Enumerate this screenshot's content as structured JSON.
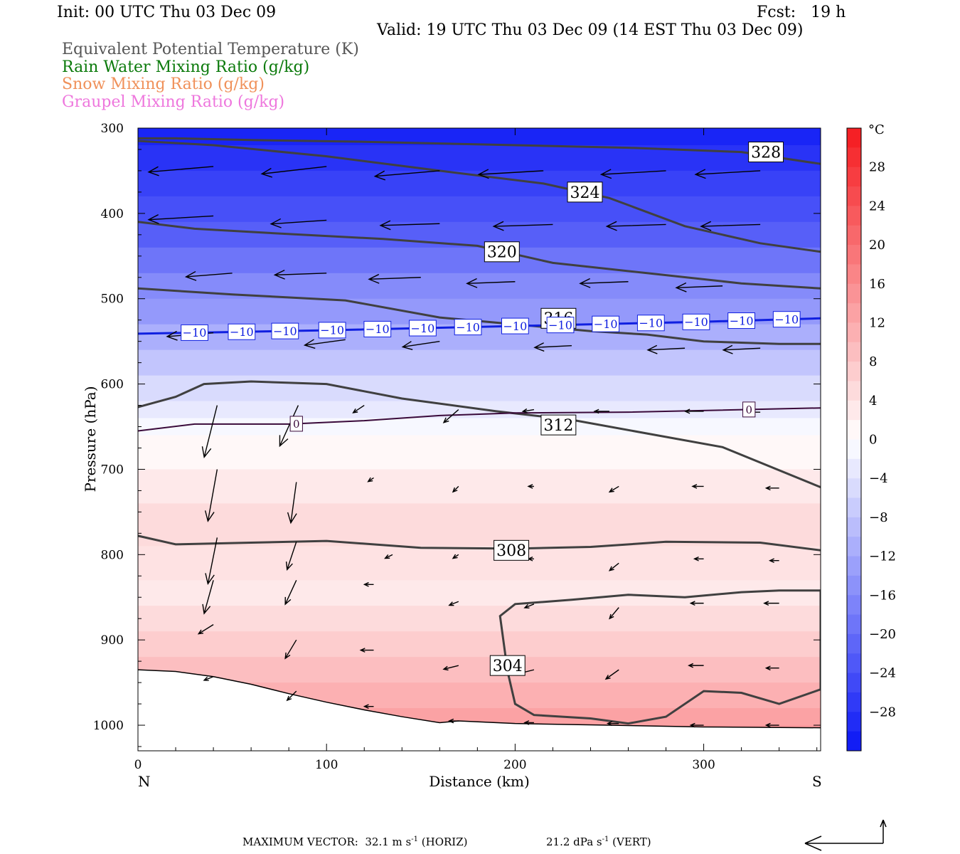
{
  "header": {
    "init": "Init: 00 UTC Thu 03 Dec 09",
    "fcst": "Fcst:   19 h",
    "valid": "Valid: 19 UTC Thu 03 Dec 09 (14 EST Thu 03 Dec 09)"
  },
  "fields": [
    {
      "label": "Equivalent Potential Temperature (K)",
      "color": "#555555"
    },
    {
      "label": "Rain Water Mixing Ratio (g/kg)",
      "color": "#0b7a0b"
    },
    {
      "label": "Snow Mixing Ratio (g/kg)",
      "color": "#f0915a"
    },
    {
      "label": "Graupel Mixing Ratio (g/kg)",
      "color": "#ee77dd"
    }
  ],
  "footer": {
    "label": "MAXIMUM VECTOR:",
    "horiz_value": "32.1 m s",
    "horiz_exp": "-1",
    "horiz_unit": "(HORIZ)",
    "vert_value": "21.2 dPa s",
    "vert_exp": "-1",
    "vert_unit": "(VERT)"
  },
  "chart_data": {
    "type": "cross-section",
    "xlabel": "Distance (km)",
    "ylabel": "Pressure (hPa)",
    "x_ticks": [
      0,
      100,
      200,
      300
    ],
    "y_ticks": [
      300,
      400,
      500,
      600,
      700,
      800,
      900,
      1000
    ],
    "xlim": [
      0,
      362
    ],
    "ylim": [
      300,
      1030
    ],
    "x_end_labels": {
      "left": "N",
      "right": "S"
    },
    "colorbar": {
      "unit": "°C",
      "ticks": [
        28,
        24,
        20,
        16,
        12,
        8,
        4,
        0,
        -4,
        -8,
        -12,
        -16,
        -20,
        -24,
        -28
      ],
      "tick_labels": [
        "28",
        "24",
        "20",
        "16",
        "12",
        "8",
        "4",
        "0",
        "−4",
        "−8",
        "−12",
        "−16",
        "−20",
        "−24",
        "−28"
      ],
      "range": [
        -32,
        32
      ],
      "cold_color": "#0a16f5",
      "warm_color": "#f5191e"
    },
    "theta_e_contours": [
      {
        "value": 328,
        "label": "328",
        "points": [
          [
            0,
            312
          ],
          [
            20,
            312
          ],
          [
            60,
            314
          ],
          [
            120,
            316
          ],
          [
            200,
            320
          ],
          [
            260,
            323
          ],
          [
            320,
            328
          ],
          [
            362,
            342
          ]
        ]
      },
      {
        "value": 324,
        "label": "324",
        "points": [
          [
            0,
            315
          ],
          [
            40,
            320
          ],
          [
            100,
            333
          ],
          [
            160,
            350
          ],
          [
            215,
            365
          ],
          [
            250,
            382
          ],
          [
            290,
            415
          ],
          [
            330,
            435
          ],
          [
            362,
            445
          ]
        ]
      },
      {
        "value": 320,
        "label": "320",
        "points": [
          [
            0,
            410
          ],
          [
            30,
            418
          ],
          [
            70,
            423
          ],
          [
            130,
            430
          ],
          [
            180,
            438
          ],
          [
            220,
            458
          ],
          [
            270,
            470
          ],
          [
            320,
            482
          ],
          [
            362,
            488
          ]
        ]
      },
      {
        "value": 316,
        "label": "316",
        "points": [
          [
            0,
            488
          ],
          [
            50,
            495
          ],
          [
            110,
            502
          ],
          [
            160,
            522
          ],
          [
            200,
            530
          ],
          [
            240,
            538
          ],
          [
            270,
            542
          ],
          [
            300,
            550
          ],
          [
            340,
            553
          ],
          [
            362,
            553
          ]
        ]
      },
      {
        "value": 312,
        "label": "312",
        "points": [
          [
            0,
            627
          ],
          [
            20,
            615
          ],
          [
            35,
            600
          ],
          [
            60,
            597
          ],
          [
            100,
            600
          ],
          [
            140,
            617
          ],
          [
            190,
            632
          ],
          [
            230,
            642
          ],
          [
            270,
            658
          ],
          [
            310,
            674
          ],
          [
            362,
            721
          ]
        ]
      },
      {
        "value": 308,
        "label": "308",
        "points": [
          [
            0,
            778
          ],
          [
            20,
            788
          ],
          [
            60,
            786
          ],
          [
            100,
            784
          ],
          [
            150,
            792
          ],
          [
            200,
            793
          ],
          [
            240,
            791
          ],
          [
            280,
            785
          ],
          [
            330,
            786
          ],
          [
            362,
            795
          ]
        ]
      },
      {
        "value": 304,
        "label": "304",
        "points": [
          [
            196,
            937
          ],
          [
            200,
            975
          ],
          [
            210,
            988
          ],
          [
            240,
            992
          ],
          [
            260,
            998
          ],
          [
            280,
            990
          ],
          [
            300,
            960
          ],
          [
            320,
            962
          ],
          [
            340,
            975
          ],
          [
            362,
            958
          ],
          [
            362,
            842
          ],
          [
            340,
            842
          ],
          [
            320,
            844
          ],
          [
            290,
            850
          ],
          [
            260,
            847
          ],
          [
            230,
            853
          ],
          [
            200,
            858
          ],
          [
            192,
            872
          ],
          [
            196,
            937
          ]
        ]
      }
    ],
    "isotherms": [
      {
        "value": -10,
        "label": "−10",
        "points": [
          [
            0,
            541
          ],
          [
            100,
            537
          ],
          [
            200,
            532
          ],
          [
            300,
            527
          ],
          [
            362,
            523
          ]
        ]
      },
      {
        "value": 0,
        "label": "0",
        "points": [
          [
            0,
            655
          ],
          [
            30,
            647
          ],
          [
            80,
            647
          ],
          [
            120,
            643
          ],
          [
            160,
            637
          ],
          [
            200,
            634
          ],
          [
            260,
            633
          ],
          [
            362,
            628
          ]
        ]
      }
    ],
    "temperature_bands": [
      {
        "p": 300,
        "t": -30
      },
      {
        "p": 320,
        "t": -28
      },
      {
        "p": 350,
        "t": -26
      },
      {
        "p": 380,
        "t": -24
      },
      {
        "p": 410,
        "t": -22
      },
      {
        "p": 440,
        "t": -19
      },
      {
        "p": 470,
        "t": -16
      },
      {
        "p": 500,
        "t": -14
      },
      {
        "p": 530,
        "t": -11
      },
      {
        "p": 560,
        "t": -8
      },
      {
        "p": 590,
        "t": -5
      },
      {
        "p": 620,
        "t": -3
      },
      {
        "p": 640,
        "t": -1
      },
      {
        "p": 660,
        "t": 1
      },
      {
        "p": 700,
        "t": 3
      },
      {
        "p": 740,
        "t": 5
      },
      {
        "p": 790,
        "t": 4
      },
      {
        "p": 830,
        "t": 3
      },
      {
        "p": 860,
        "t": 5
      },
      {
        "p": 890,
        "t": 7
      },
      {
        "p": 920,
        "t": 9
      },
      {
        "p": 950,
        "t": 11
      },
      {
        "p": 980,
        "t": 13
      },
      {
        "p": 1000,
        "t": 14
      }
    ],
    "terrain": [
      [
        0,
        935
      ],
      [
        20,
        937
      ],
      [
        40,
        943
      ],
      [
        60,
        952
      ],
      [
        80,
        963
      ],
      [
        100,
        973
      ],
      [
        120,
        982
      ],
      [
        140,
        990
      ],
      [
        160,
        997
      ],
      [
        170,
        995
      ],
      [
        200,
        998
      ],
      [
        250,
        1000
      ],
      [
        300,
        1002
      ],
      [
        362,
        1003
      ]
    ],
    "wind_vectors": [
      [
        40,
        345,
        -35,
        -3
      ],
      [
        100,
        345,
        -35,
        -4
      ],
      [
        160,
        350,
        -35,
        -3
      ],
      [
        215,
        350,
        -35,
        -2
      ],
      [
        280,
        350,
        -35,
        -2
      ],
      [
        330,
        350,
        -35,
        -2
      ],
      [
        40,
        403,
        -35,
        -2
      ],
      [
        100,
        408,
        -30,
        -2
      ],
      [
        160,
        412,
        -32,
        -1
      ],
      [
        220,
        413,
        -32,
        -1
      ],
      [
        280,
        413,
        -32,
        -1
      ],
      [
        330,
        413,
        -32,
        -1
      ],
      [
        50,
        470,
        -25,
        -2
      ],
      [
        100,
        470,
        -28,
        -1
      ],
      [
        150,
        475,
        -28,
        -1
      ],
      [
        200,
        480,
        -26,
        -1
      ],
      [
        260,
        480,
        -26,
        -1
      ],
      [
        310,
        485,
        -25,
        -1
      ],
      [
        40,
        540,
        -25,
        -2
      ],
      [
        110,
        548,
        -22,
        -3
      ],
      [
        160,
        550,
        -20,
        -3
      ],
      [
        230,
        555,
        -20,
        -1
      ],
      [
        290,
        558,
        -20,
        -1
      ],
      [
        330,
        558,
        -20,
        -1
      ],
      [
        42,
        625,
        -7,
        -28
      ],
      [
        85,
        625,
        -10,
        -22
      ],
      [
        120,
        625,
        -6,
        -4
      ],
      [
        170,
        630,
        -8,
        -7
      ],
      [
        210,
        630,
        -6,
        -1
      ],
      [
        250,
        632,
        -8,
        0
      ],
      [
        300,
        632,
        -10,
        0
      ],
      [
        330,
        633,
        -8,
        0
      ],
      [
        42,
        700,
        -5,
        -28
      ],
      [
        84,
        715,
        -3,
        -22
      ],
      [
        125,
        710,
        -3,
        -2
      ],
      [
        170,
        720,
        -3,
        -3
      ],
      [
        210,
        720,
        -3,
        0
      ],
      [
        255,
        720,
        -5,
        -3
      ],
      [
        300,
        720,
        -6,
        0
      ],
      [
        340,
        722,
        -7,
        0
      ],
      [
        42,
        780,
        -5,
        -25
      ],
      [
        84,
        785,
        -5,
        -15
      ],
      [
        135,
        800,
        -4,
        -2
      ],
      [
        170,
        800,
        -3,
        -2
      ],
      [
        210,
        805,
        -3,
        0
      ],
      [
        255,
        810,
        -5,
        -4
      ],
      [
        300,
        805,
        -5,
        0
      ],
      [
        340,
        807,
        -5,
        0
      ],
      [
        40,
        830,
        -5,
        -18
      ],
      [
        84,
        830,
        -6,
        -13
      ],
      [
        125,
        835,
        -5,
        0
      ],
      [
        170,
        855,
        -5,
        -2
      ],
      [
        210,
        858,
        -5,
        -2
      ],
      [
        255,
        862,
        -5,
        -6
      ],
      [
        300,
        857,
        -7,
        0
      ],
      [
        340,
        857,
        -8,
        0
      ],
      [
        40,
        882,
        -8,
        -5
      ],
      [
        84,
        900,
        -6,
        -10
      ],
      [
        125,
        912,
        -7,
        0
      ],
      [
        170,
        930,
        -8,
        -2
      ],
      [
        210,
        935,
        -8,
        -2
      ],
      [
        255,
        935,
        -7,
        -5
      ],
      [
        300,
        930,
        -8,
        0
      ],
      [
        340,
        933,
        -7,
        0
      ],
      [
        40,
        943,
        -5,
        -2
      ],
      [
        84,
        960,
        -5,
        -5
      ],
      [
        125,
        978,
        -5,
        0
      ],
      [
        170,
        995,
        -5,
        0
      ],
      [
        210,
        997,
        -5,
        0
      ],
      [
        255,
        998,
        -6,
        0
      ],
      [
        300,
        1000,
        -7,
        0
      ],
      [
        340,
        1000,
        -7,
        0
      ]
    ]
  }
}
